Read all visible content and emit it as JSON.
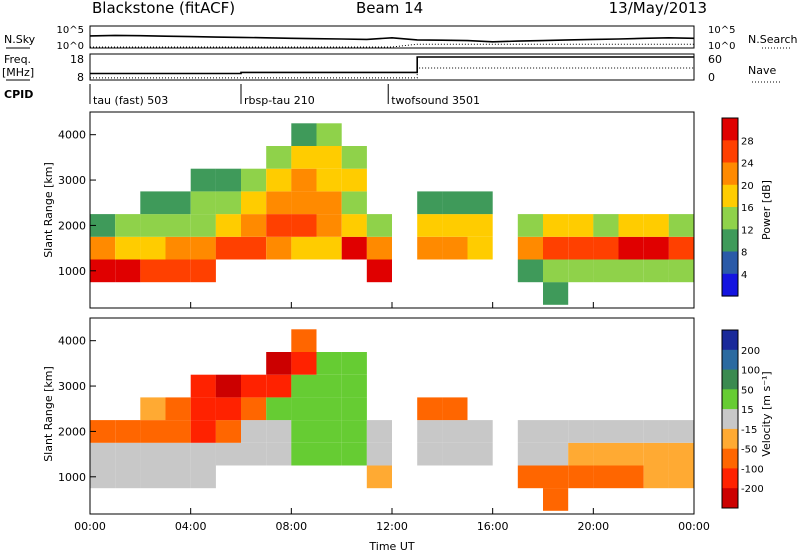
{
  "header": {
    "title": "Blackstone (fitACF)",
    "beam": "Beam 14",
    "date": "13/May/2013"
  },
  "params": {
    "nsky_label": "N.Sky",
    "nsearch_label": "N.Search",
    "freq_label": "Freq.",
    "freq_unit": "[MHz]",
    "nave_label": "Nave",
    "cpid_label": "CPID",
    "nsky_ticks": [
      "10^5",
      "10^0"
    ],
    "nsearch_ticks": [
      "10^5",
      "10^0"
    ],
    "freq_ticks": [
      "18",
      "8"
    ],
    "nave_ticks": [
      "60",
      "0"
    ]
  },
  "cpid": [
    {
      "label": "tau (fast) 503",
      "start_hour": 0
    },
    {
      "label": "rbsp-tau 210",
      "start_hour": 6
    },
    {
      "label": "twofsound 3501",
      "start_hour": 11.85
    }
  ],
  "power_panel": {
    "ylabel": "Slant Range [km]",
    "colorbar_label": "Power [dB]",
    "colorbar_ticks": [
      "28",
      "24",
      "20",
      "16",
      "12",
      "8",
      "4"
    ],
    "colorbar_colors": [
      "#e00000",
      "#ff4000",
      "#ff8a00",
      "#ffcc00",
      "#8fd24a",
      "#3f9a5a",
      "#2a5aa8",
      "#1414e0"
    ]
  },
  "velocity_panel": {
    "ylabel": "Slant Range [km]",
    "colorbar_label": "Velocity [m s⁻¹]",
    "colorbar_ticks": [
      "200",
      "100",
      "50",
      "15",
      "-15",
      "-50",
      "-100",
      "-200"
    ],
    "colorbar_colors": [
      "#1a2a9a",
      "#2b6aa0",
      "#3a8a50",
      "#66cc33",
      "#c8c8c8",
      "#ffaa33",
      "#ff6600",
      "#ff2200",
      "#cc0000"
    ]
  },
  "xaxis": {
    "label": "Time UT",
    "ticks": [
      "00:00",
      "04:00",
      "08:00",
      "12:00",
      "16:00",
      "20:00",
      "00:00"
    ]
  },
  "chart_data": [
    {
      "type": "line",
      "title": "N.Sky / N.Search",
      "x_unit": "hour UT",
      "xlim": [
        0,
        24
      ],
      "series": [
        {
          "name": "N.Sky",
          "x": [
            0,
            1,
            2,
            3,
            4,
            5,
            6,
            7,
            8,
            9,
            10,
            11,
            12,
            13,
            14,
            15,
            16,
            17,
            18,
            19,
            20,
            21,
            22,
            23,
            24
          ],
          "values": [
            600,
            800,
            650,
            500,
            400,
            300,
            250,
            200,
            150,
            120,
            100,
            80,
            200,
            60,
            50,
            40,
            20,
            30,
            40,
            60,
            80,
            100,
            150,
            200,
            150
          ]
        },
        {
          "name": "N.Search",
          "x": [
            0,
            12,
            13,
            24
          ],
          "values": [
            1,
            1,
            5,
            5
          ]
        }
      ]
    },
    {
      "type": "line",
      "title": "Freq. / Nave",
      "x_unit": "hour UT",
      "xlim": [
        0,
        24
      ],
      "series": [
        {
          "name": "Freq. [MHz]",
          "x": [
            0,
            6,
            6,
            13,
            13,
            24
          ],
          "values": [
            10.5,
            10.5,
            11,
            11,
            18,
            18
          ]
        },
        {
          "name": "Nave",
          "x": [
            0,
            13,
            13,
            24
          ],
          "values": [
            3,
            3,
            30,
            30
          ]
        }
      ]
    },
    {
      "type": "heatmap",
      "title": "Power [dB]",
      "x_unit": "hour UT",
      "y_unit": "km",
      "xlim": [
        0,
        24
      ],
      "ylim": [
        180,
        4500
      ],
      "x": [
        0.5,
        1.5,
        2.5,
        3.5,
        4.5,
        5.5,
        6.5,
        7.5,
        8.5,
        9.5,
        10.5,
        11.5,
        13.5,
        14.5,
        15.5,
        17.5,
        18.5,
        19.5,
        20.5,
        21.5,
        22.5,
        23.5
      ],
      "y": [
        500,
        1000,
        1500,
        2000,
        2500,
        3000,
        3500,
        4000
      ],
      "values": [
        [
          null,
          28,
          20,
          10,
          null,
          null,
          null,
          null
        ],
        [
          null,
          28,
          16,
          12,
          null,
          null,
          null,
          null
        ],
        [
          null,
          26,
          18,
          12,
          8,
          null,
          null,
          null
        ],
        [
          null,
          24,
          20,
          14,
          10,
          null,
          null,
          null
        ],
        [
          null,
          24,
          20,
          14,
          12,
          8,
          null,
          null
        ],
        [
          null,
          null,
          26,
          18,
          14,
          10,
          null,
          null
        ],
        [
          null,
          null,
          26,
          20,
          16,
          12,
          null,
          null
        ],
        [
          null,
          null,
          20,
          26,
          20,
          16,
          12,
          null
        ],
        [
          null,
          null,
          18,
          26,
          22,
          20,
          16,
          10
        ],
        [
          null,
          null,
          16,
          22,
          20,
          18,
          16,
          12
        ],
        [
          null,
          null,
          28,
          16,
          14,
          16,
          14,
          null
        ],
        [
          null,
          28,
          22,
          12,
          null,
          null,
          null,
          null
        ],
        [
          null,
          null,
          20,
          18,
          10,
          null,
          null,
          null
        ],
        [
          null,
          null,
          20,
          18,
          10,
          null,
          null,
          null
        ],
        [
          null,
          null,
          18,
          16,
          8,
          null,
          null,
          null
        ],
        [
          null,
          10,
          22,
          14,
          null,
          null,
          null,
          null
        ],
        [
          8,
          12,
          24,
          16,
          null,
          null,
          null,
          null
        ],
        [
          null,
          12,
          26,
          16,
          null,
          null,
          null,
          null
        ],
        [
          null,
          12,
          26,
          14,
          null,
          null,
          null,
          null
        ],
        [
          null,
          14,
          28,
          16,
          null,
          null,
          null,
          null
        ],
        [
          null,
          14,
          28,
          16,
          null,
          null,
          null,
          null
        ],
        [
          null,
          12,
          26,
          14,
          null,
          null,
          null,
          null
        ]
      ]
    },
    {
      "type": "heatmap",
      "title": "Velocity [m s⁻¹]",
      "x_unit": "hour UT",
      "y_unit": "km",
      "xlim": [
        0,
        24
      ],
      "ylim": [
        180,
        4500
      ],
      "x": [
        0.5,
        1.5,
        2.5,
        3.5,
        4.5,
        5.5,
        6.5,
        7.5,
        8.5,
        9.5,
        10.5,
        11.5,
        13.5,
        14.5,
        15.5,
        17.5,
        18.5,
        19.5,
        20.5,
        21.5,
        22.5,
        23.5
      ],
      "y": [
        500,
        1000,
        1500,
        2000,
        2500,
        3000,
        3500,
        4000
      ],
      "values": [
        [
          null,
          0,
          0,
          -60,
          null,
          null,
          null,
          null
        ],
        [
          null,
          0,
          0,
          -70,
          null,
          null,
          null,
          null
        ],
        [
          null,
          0,
          0,
          -80,
          -40,
          null,
          null,
          null
        ],
        [
          null,
          0,
          0,
          -90,
          -80,
          null,
          null,
          null
        ],
        [
          null,
          0,
          0,
          -110,
          -120,
          -200,
          null,
          null
        ],
        [
          null,
          null,
          0,
          -100,
          -150,
          -220,
          null,
          null
        ],
        [
          null,
          null,
          0,
          0,
          -80,
          -200,
          null,
          null
        ],
        [
          null,
          null,
          0,
          0,
          30,
          -200,
          -220,
          null
        ],
        [
          null,
          null,
          40,
          30,
          30,
          40,
          -200,
          -60
        ],
        [
          null,
          null,
          40,
          40,
          35,
          40,
          40,
          null
        ],
        [
          null,
          null,
          35,
          40,
          40,
          40,
          40,
          null
        ],
        [
          null,
          -20,
          0,
          0,
          null,
          null,
          null,
          null
        ],
        [
          null,
          null,
          0,
          0,
          -60,
          null,
          null,
          null
        ],
        [
          null,
          null,
          0,
          0,
          -60,
          null,
          null,
          null
        ],
        [
          null,
          null,
          0,
          0,
          null,
          null,
          null,
          null
        ],
        [
          null,
          -100,
          0,
          0,
          null,
          null,
          null,
          null
        ],
        [
          -60,
          -80,
          0,
          0,
          null,
          null,
          null,
          null
        ],
        [
          null,
          -80,
          -30,
          0,
          null,
          null,
          null,
          null
        ],
        [
          null,
          -60,
          -40,
          0,
          null,
          null,
          null,
          null
        ],
        [
          null,
          -60,
          -40,
          0,
          null,
          null,
          null,
          null
        ],
        [
          null,
          -40,
          -20,
          0,
          null,
          null,
          null,
          null
        ],
        [
          null,
          -40,
          -20,
          0,
          null,
          null,
          null,
          null
        ]
      ]
    }
  ]
}
